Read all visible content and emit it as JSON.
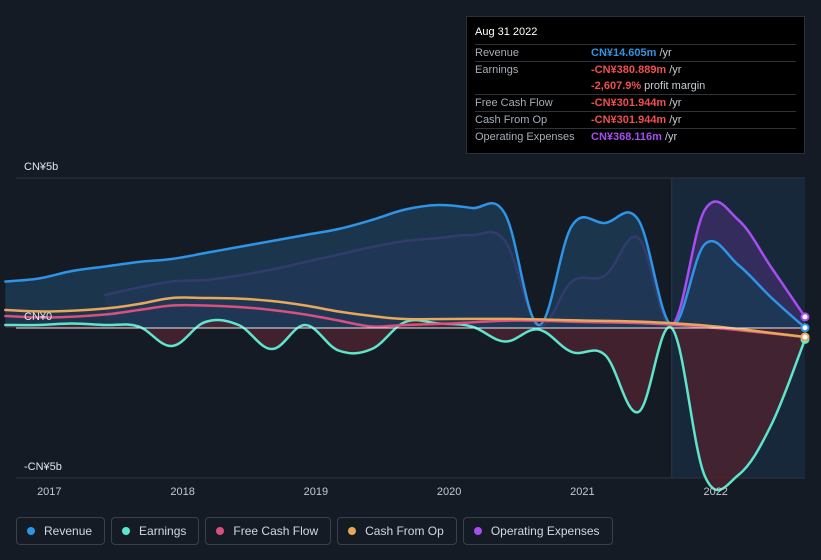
{
  "tooltip": {
    "date": "Aug 31 2022",
    "rows": [
      {
        "label": "Revenue",
        "value": "CN¥14.605m",
        "unit": "/yr",
        "color": "#2e94e6"
      },
      {
        "label": "Earnings",
        "value": "-CN¥380.889m",
        "unit": "/yr",
        "color": "#f04e4e"
      },
      {
        "label": "",
        "value": "-2,607.9%",
        "unit": "profit margin",
        "color": "#f04e4e"
      },
      {
        "label": "Free Cash Flow",
        "value": "-CN¥301.944m",
        "unit": "/yr",
        "color": "#f04e4e"
      },
      {
        "label": "Cash From Op",
        "value": "-CN¥301.944m",
        "unit": "/yr",
        "color": "#f04e4e"
      },
      {
        "label": "Operating Expenses",
        "value": "CN¥368.116m",
        "unit": "/yr",
        "color": "#a64ef0"
      }
    ]
  },
  "legend": [
    {
      "label": "Revenue",
      "color": "#2e94e6"
    },
    {
      "label": "Earnings",
      "color": "#5ee6cc"
    },
    {
      "label": "Free Cash Flow",
      "color": "#d9507e"
    },
    {
      "label": "Cash From Op",
      "color": "#e8a85a"
    },
    {
      "label": "Operating Expenses",
      "color": "#a64ef0"
    }
  ],
  "chart_data": {
    "type": "area",
    "y_tick_labels": [
      "CN¥5b",
      "CN¥0",
      "-CN¥5b"
    ],
    "ylim": [
      -5,
      5
    ],
    "y_unit": "CN¥b",
    "x_tick_labels": [
      "2017",
      "2018",
      "2019",
      "2020",
      "2021",
      "2022"
    ],
    "x_ticks": [
      2017,
      2018,
      2019,
      2020,
      2021,
      2022
    ],
    "xlim": [
      2016.75,
      2022.67
    ],
    "highlight_range": [
      2021.67,
      2022.67
    ],
    "series": [
      {
        "name": "Operating Expenses",
        "color": "#a64ef0",
        "fill": "#3a2d63",
        "x": [
          2017.42,
          2017.67,
          2017.92,
          2018.17,
          2018.42,
          2018.67,
          2018.92,
          2019.17,
          2019.42,
          2019.67,
          2019.92,
          2020.17,
          2020.42,
          2020.67,
          2020.92,
          2021.17,
          2021.42,
          2021.67,
          2021.92,
          2022.17,
          2022.42,
          2022.67
        ],
        "values": [
          1.1,
          1.35,
          1.55,
          1.6,
          1.75,
          1.95,
          2.2,
          2.45,
          2.7,
          2.9,
          3.0,
          3.1,
          2.9,
          0.1,
          1.55,
          1.75,
          3.0,
          0.1,
          3.95,
          3.6,
          2.0,
          0.37
        ]
      },
      {
        "name": "Revenue",
        "color": "#2e94e6",
        "fill": "#1c3a55",
        "x": [
          2016.67,
          2016.92,
          2017.17,
          2017.42,
          2017.67,
          2017.92,
          2018.17,
          2018.42,
          2018.67,
          2018.92,
          2019.17,
          2019.42,
          2019.67,
          2019.92,
          2020.17,
          2020.42,
          2020.67,
          2020.92,
          2021.17,
          2021.42,
          2021.67,
          2021.92,
          2022.17,
          2022.42,
          2022.67
        ],
        "values": [
          1.55,
          1.65,
          1.9,
          2.05,
          2.2,
          2.3,
          2.5,
          2.7,
          2.9,
          3.1,
          3.3,
          3.6,
          3.95,
          4.1,
          4.0,
          3.8,
          0.1,
          3.4,
          3.5,
          3.6,
          0.1,
          2.8,
          2.1,
          1.0,
          0.01
        ]
      },
      {
        "name": "Earnings",
        "color": "#5ee6cc",
        "fill": "#4a2230",
        "x": [
          2016.67,
          2016.92,
          2017.17,
          2017.42,
          2017.67,
          2017.92,
          2018.17,
          2018.42,
          2018.67,
          2018.92,
          2019.17,
          2019.42,
          2019.67,
          2019.92,
          2020.17,
          2020.42,
          2020.67,
          2020.92,
          2021.17,
          2021.42,
          2021.67,
          2021.92,
          2022.17,
          2022.42,
          2022.67
        ],
        "values": [
          0.1,
          0.1,
          0.15,
          0.1,
          0.05,
          -0.6,
          0.2,
          0.1,
          -0.7,
          0.1,
          -0.75,
          -0.7,
          0.2,
          0.15,
          0.05,
          -0.45,
          -0.05,
          -0.8,
          -0.9,
          -2.8,
          0.0,
          -4.95,
          -4.9,
          -3.2,
          -0.38
        ]
      },
      {
        "name": "Free Cash Flow",
        "color": "#d9507e",
        "fill": "none",
        "x": [
          2016.67,
          2017.0,
          2017.42,
          2017.67,
          2017.92,
          2018.17,
          2018.42,
          2018.67,
          2018.92,
          2019.17,
          2019.42,
          2019.67,
          2020.0,
          2020.5,
          2021.0,
          2021.5,
          2022.0,
          2022.67
        ],
        "values": [
          0.4,
          0.35,
          0.45,
          0.6,
          0.75,
          0.75,
          0.7,
          0.6,
          0.45,
          0.25,
          0.05,
          0.1,
          0.15,
          0.25,
          0.2,
          0.15,
          0.0,
          -0.3
        ]
      },
      {
        "name": "Cash From Op",
        "color": "#e8a85a",
        "fill": "none",
        "x": [
          2016.67,
          2017.0,
          2017.42,
          2017.67,
          2017.92,
          2018.17,
          2018.42,
          2018.67,
          2018.92,
          2019.17,
          2019.42,
          2019.67,
          2020.0,
          2020.5,
          2021.0,
          2021.5,
          2022.0,
          2022.67
        ],
        "values": [
          0.6,
          0.55,
          0.65,
          0.8,
          1.0,
          1.0,
          0.98,
          0.9,
          0.75,
          0.55,
          0.4,
          0.3,
          0.3,
          0.3,
          0.25,
          0.2,
          0.05,
          -0.3
        ]
      }
    ]
  }
}
